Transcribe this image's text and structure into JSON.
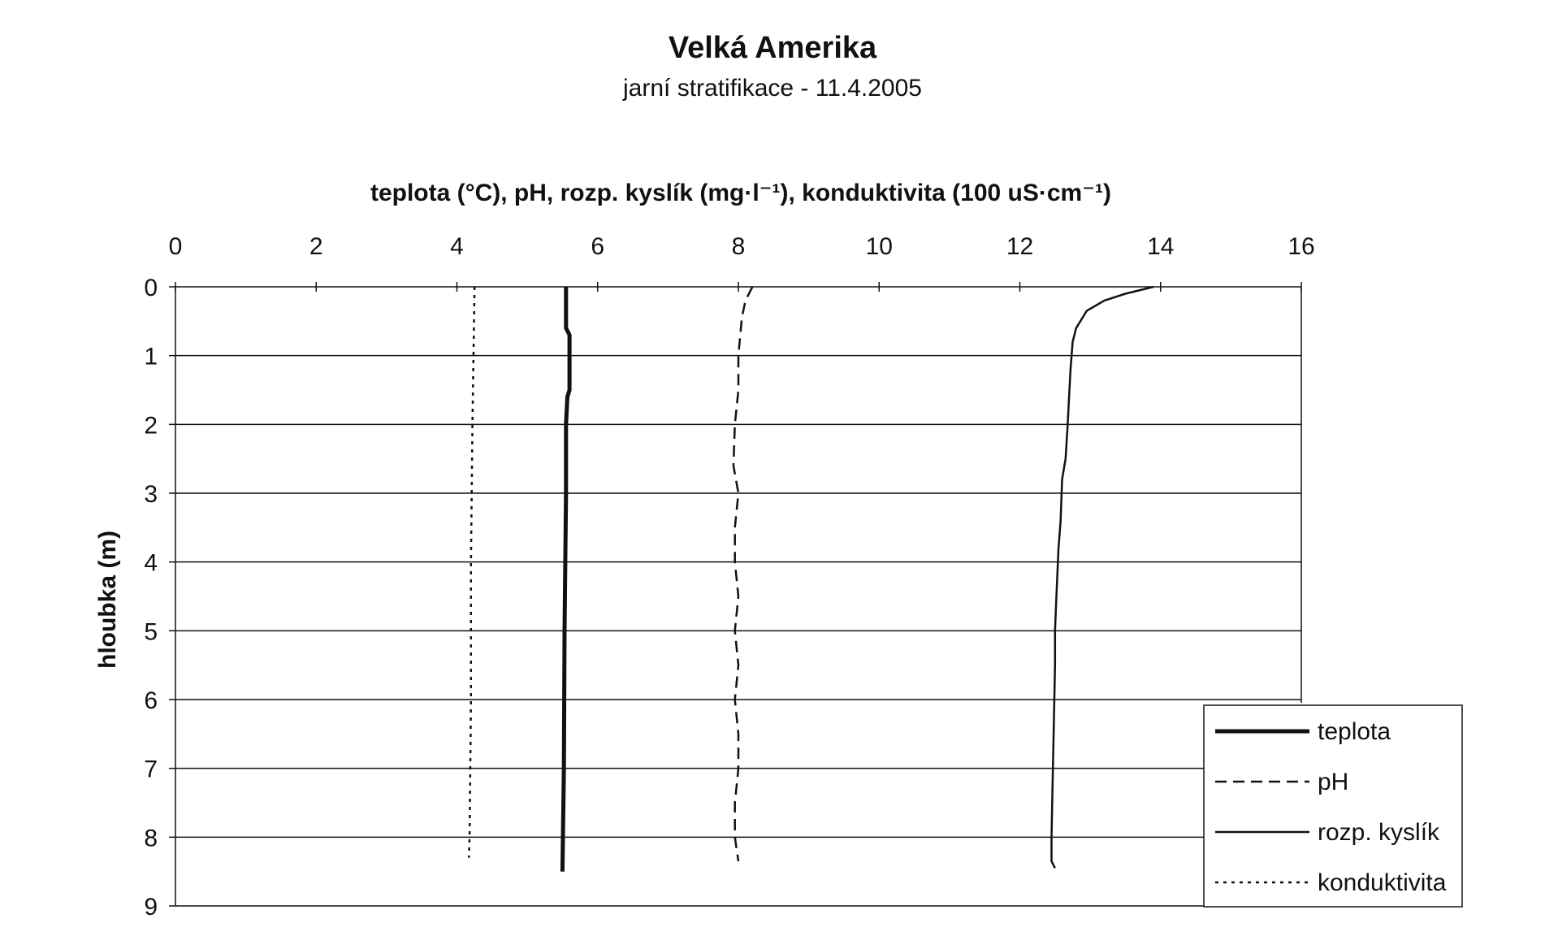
{
  "chart_data": {
    "type": "line",
    "title": "Velká Amerika",
    "subtitle": "jarní stratifikace - 11.4.2005",
    "xlabel": "teplota (°C), pH, rozp. kyslík (mg·l⁻¹), konduktivita (100 uS·cm⁻¹)",
    "ylabel": "hloubka (m)",
    "xlim": [
      0,
      16
    ],
    "ylim": [
      0,
      9
    ],
    "y_inverted": true,
    "x_axis_position": "top",
    "x_ticks": [
      "0",
      "2",
      "4",
      "6",
      "8",
      "10",
      "12",
      "14",
      "16"
    ],
    "y_ticks": [
      "0",
      "1",
      "2",
      "3",
      "4",
      "5",
      "6",
      "7",
      "8",
      "9"
    ],
    "grid": "horizontal",
    "legend_position": "bottom-right",
    "series": [
      {
        "name": "teplota",
        "style": "thick-solid",
        "points": [
          [
            5.55,
            0
          ],
          [
            5.55,
            0.6
          ],
          [
            5.6,
            0.7
          ],
          [
            5.6,
            1.5
          ],
          [
            5.57,
            1.6
          ],
          [
            5.55,
            2
          ],
          [
            5.55,
            3
          ],
          [
            5.53,
            5
          ],
          [
            5.52,
            7
          ],
          [
            5.5,
            8.5
          ]
        ]
      },
      {
        "name": "pH",
        "style": "dashed",
        "points": [
          [
            8.2,
            0
          ],
          [
            8.1,
            0.2
          ],
          [
            8.05,
            0.45
          ],
          [
            8.0,
            1
          ],
          [
            8.0,
            1.5
          ],
          [
            7.95,
            2
          ],
          [
            7.93,
            2.6
          ],
          [
            8.0,
            3
          ],
          [
            7.95,
            3.5
          ],
          [
            7.95,
            4
          ],
          [
            8.0,
            4.5
          ],
          [
            7.95,
            5
          ],
          [
            8.0,
            5.5
          ],
          [
            7.95,
            6
          ],
          [
            8.0,
            6.5
          ],
          [
            8.0,
            7
          ],
          [
            7.95,
            7.5
          ],
          [
            7.95,
            8
          ],
          [
            8.0,
            8.35
          ]
        ]
      },
      {
        "name": "rozp. kyslík",
        "style": "solid",
        "points": [
          [
            13.9,
            0
          ],
          [
            13.5,
            0.1
          ],
          [
            13.2,
            0.2
          ],
          [
            12.95,
            0.35
          ],
          [
            12.8,
            0.6
          ],
          [
            12.75,
            0.8
          ],
          [
            12.72,
            1.2
          ],
          [
            12.7,
            1.6
          ],
          [
            12.68,
            2
          ],
          [
            12.65,
            2.5
          ],
          [
            12.6,
            2.8
          ],
          [
            12.58,
            3.4
          ],
          [
            12.55,
            3.8
          ],
          [
            12.52,
            4.5
          ],
          [
            12.5,
            5
          ],
          [
            12.5,
            5.5
          ],
          [
            12.48,
            6.5
          ],
          [
            12.47,
            7
          ],
          [
            12.45,
            8
          ],
          [
            12.45,
            8.35
          ],
          [
            12.5,
            8.45
          ]
        ]
      },
      {
        "name": "konduktivita",
        "style": "dotted",
        "points": [
          [
            4.25,
            0
          ],
          [
            4.22,
            2
          ],
          [
            4.2,
            4
          ],
          [
            4.2,
            6
          ],
          [
            4.18,
            8
          ],
          [
            4.17,
            8.3
          ]
        ]
      }
    ]
  }
}
